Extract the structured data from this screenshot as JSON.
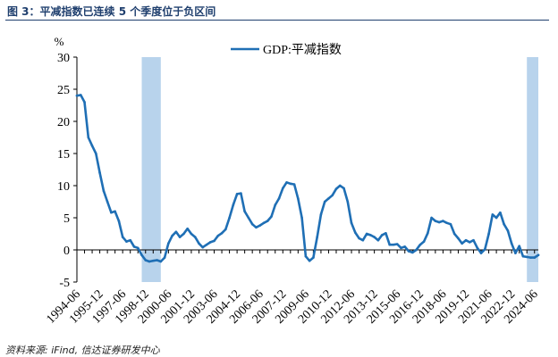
{
  "figure": {
    "title": "图 3：平减指数已连续 5 个季度位于负区间",
    "source": "资料来源: iFind, 信达证券研发中心"
  },
  "colors": {
    "line": "#1f6fb5",
    "shade": "#b8d3ec",
    "title": "#1f3f6e"
  },
  "chart_data": {
    "type": "line",
    "unit_label": "%",
    "ylim": [
      -5,
      30
    ],
    "yticks": [
      -5,
      0,
      5,
      10,
      15,
      20,
      25,
      30
    ],
    "xticks": [
      "1994-06",
      "1995-12",
      "1997-06",
      "1998-12",
      "2000-06",
      "2001-12",
      "2003-06",
      "2004-12",
      "2006-06",
      "2007-12",
      "2009-06",
      "2010-12",
      "2012-06",
      "2013-12",
      "2015-06",
      "2016-12",
      "2018-06",
      "2019-12",
      "2021-06",
      "2022-12",
      "2024-06"
    ],
    "legend": {
      "position": "top-center"
    },
    "grid": false,
    "shaded_ranges": [
      [
        "1998-06",
        "1999-09"
      ],
      [
        "2023-09",
        "2024-06"
      ]
    ],
    "series": [
      {
        "name": "GDP:平减指数",
        "x": [
          "1994-03",
          "1994-06",
          "1994-09",
          "1994-12",
          "1995-03",
          "1995-06",
          "1995-09",
          "1995-12",
          "1996-03",
          "1996-06",
          "1996-09",
          "1996-12",
          "1997-03",
          "1997-06",
          "1997-09",
          "1997-12",
          "1998-03",
          "1998-06",
          "1998-09",
          "1998-12",
          "1999-03",
          "1999-06",
          "1999-09",
          "1999-12",
          "2000-03",
          "2000-06",
          "2000-09",
          "2000-12",
          "2001-03",
          "2001-06",
          "2001-09",
          "2001-12",
          "2002-03",
          "2002-06",
          "2002-09",
          "2002-12",
          "2003-03",
          "2003-06",
          "2003-09",
          "2003-12",
          "2004-03",
          "2004-06",
          "2004-09",
          "2004-12",
          "2005-03",
          "2005-06",
          "2005-09",
          "2005-12",
          "2006-03",
          "2006-06",
          "2006-09",
          "2006-12",
          "2007-03",
          "2007-06",
          "2007-09",
          "2007-12",
          "2008-03",
          "2008-06",
          "2008-09",
          "2008-12",
          "2009-03",
          "2009-06",
          "2009-09",
          "2009-12",
          "2010-03",
          "2010-06",
          "2010-09",
          "2010-12",
          "2011-03",
          "2011-06",
          "2011-09",
          "2011-12",
          "2012-03",
          "2012-06",
          "2012-09",
          "2012-12",
          "2013-03",
          "2013-06",
          "2013-09",
          "2013-12",
          "2014-03",
          "2014-06",
          "2014-09",
          "2014-12",
          "2015-03",
          "2015-06",
          "2015-09",
          "2015-12",
          "2016-03",
          "2016-06",
          "2016-09",
          "2016-12",
          "2017-03",
          "2017-06",
          "2017-09",
          "2017-12",
          "2018-03",
          "2018-06",
          "2018-09",
          "2018-12",
          "2019-03",
          "2019-06",
          "2019-09",
          "2019-12",
          "2020-03",
          "2020-06",
          "2020-09",
          "2020-12",
          "2021-03",
          "2021-06",
          "2021-09",
          "2021-12",
          "2022-03",
          "2022-06",
          "2022-09",
          "2022-12",
          "2023-03",
          "2023-06",
          "2023-09",
          "2023-12",
          "2024-03",
          "2024-06"
        ],
        "values": [
          24.0,
          24.1,
          23.0,
          17.5,
          16.2,
          15.0,
          12.0,
          9.2,
          7.5,
          5.8,
          6.0,
          4.5,
          2.0,
          1.3,
          1.5,
          0.5,
          0.3,
          -0.8,
          -1.6,
          -1.8,
          -1.7,
          -1.6,
          -1.8,
          -1.2,
          1.0,
          2.2,
          2.8,
          2.0,
          2.5,
          3.3,
          2.5,
          2.0,
          1.0,
          0.4,
          0.8,
          1.2,
          1.4,
          2.2,
          2.6,
          3.2,
          5.0,
          7.0,
          8.7,
          8.8,
          6.0,
          5.0,
          4.0,
          3.5,
          3.8,
          4.2,
          4.5,
          5.2,
          7.0,
          8.0,
          9.6,
          10.5,
          10.3,
          10.2,
          8.0,
          5.0,
          -1.0,
          -1.7,
          -1.2,
          2.0,
          5.5,
          7.5,
          8.0,
          8.5,
          9.5,
          10.0,
          9.6,
          7.5,
          4.2,
          2.7,
          1.8,
          1.5,
          2.5,
          2.3,
          2.0,
          1.5,
          2.3,
          2.6,
          0.8,
          0.8,
          0.9,
          0.3,
          0.5,
          -0.2,
          -0.4,
          0.0,
          0.8,
          1.3,
          2.6,
          5.0,
          4.5,
          4.3,
          4.5,
          4.2,
          4.0,
          2.5,
          1.8,
          1.0,
          1.5,
          1.2,
          1.5,
          0.3,
          -0.5,
          0.1,
          2.5,
          5.5,
          5.0,
          5.8,
          4.0,
          3.0,
          1.0,
          -0.5,
          0.6,
          -1.0,
          -1.1,
          -1.2,
          -1.2,
          -0.8
        ]
      }
    ]
  }
}
